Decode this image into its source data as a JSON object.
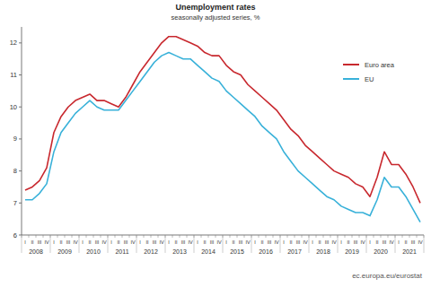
{
  "chart_data": {
    "type": "line",
    "title": "Unemployment rates",
    "subtitle": "seasonally adjusted series, %",
    "source": "ec.europa.eu/eurostat",
    "categories": [
      "I",
      "II",
      "III",
      "IV",
      "I",
      "II",
      "III",
      "IV",
      "I",
      "II",
      "III",
      "IV",
      "I",
      "II",
      "III",
      "IV",
      "I",
      "II",
      "III",
      "IV",
      "I",
      "II",
      "III",
      "IV",
      "I",
      "II",
      "III",
      "IV",
      "I",
      "II",
      "III",
      "IV",
      "I",
      "II",
      "III",
      "IV",
      "I",
      "II",
      "III",
      "IV",
      "I",
      "II",
      "III",
      "IV",
      "I",
      "II",
      "III",
      "IV",
      "I",
      "II",
      "III",
      "IV",
      "I",
      "II",
      "III",
      "IV"
    ],
    "years": [
      "2008",
      "2009",
      "2010",
      "2011",
      "2012",
      "2013",
      "2014",
      "2015",
      "2016",
      "2017",
      "2018",
      "2019",
      "2020",
      "2021"
    ],
    "series": [
      {
        "name": "Euro area",
        "color": "#c8282e",
        "values": [
          7.4,
          7.5,
          7.7,
          8.1,
          9.2,
          9.7,
          10.0,
          10.2,
          10.3,
          10.4,
          10.2,
          10.2,
          10.1,
          10.0,
          10.3,
          10.7,
          11.1,
          11.4,
          11.7,
          12.0,
          12.2,
          12.2,
          12.1,
          12.0,
          11.9,
          11.7,
          11.6,
          11.6,
          11.3,
          11.1,
          11.0,
          10.7,
          10.5,
          10.3,
          10.1,
          9.9,
          9.6,
          9.3,
          9.1,
          8.8,
          8.6,
          8.4,
          8.2,
          8.0,
          7.9,
          7.8,
          7.6,
          7.5,
          7.2,
          7.8,
          8.6,
          8.2,
          8.2,
          7.9,
          7.5,
          7.0
        ]
      },
      {
        "name": "EU",
        "color": "#38b1d9",
        "values": [
          7.1,
          7.1,
          7.3,
          7.6,
          8.6,
          9.2,
          9.5,
          9.8,
          10.0,
          10.2,
          10.0,
          9.9,
          9.9,
          9.9,
          10.2,
          10.5,
          10.8,
          11.1,
          11.4,
          11.6,
          11.7,
          11.6,
          11.5,
          11.5,
          11.3,
          11.1,
          10.9,
          10.8,
          10.5,
          10.3,
          10.1,
          9.9,
          9.7,
          9.4,
          9.2,
          9.0,
          8.6,
          8.3,
          8.0,
          7.8,
          7.6,
          7.4,
          7.2,
          7.1,
          6.9,
          6.8,
          6.7,
          6.7,
          6.6,
          7.1,
          7.8,
          7.5,
          7.5,
          7.2,
          6.8,
          6.4
        ]
      }
    ],
    "ylim": [
      6,
      12.5
    ],
    "yticks": [
      6,
      7,
      8,
      9,
      10,
      11,
      12
    ],
    "grid": false,
    "legend": "top-right"
  }
}
